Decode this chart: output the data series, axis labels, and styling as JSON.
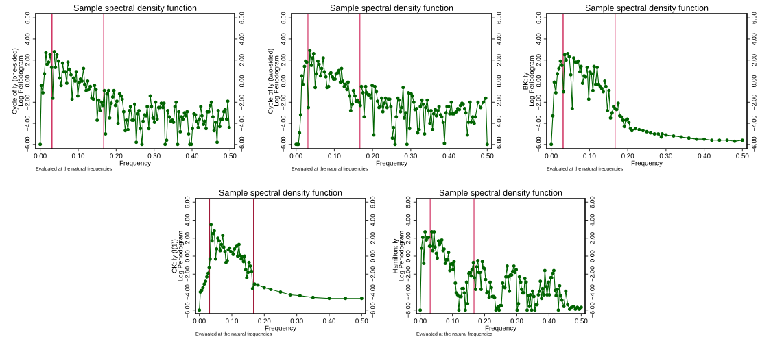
{
  "chart_data": [
    {
      "type": "line",
      "title": "Sample spectral density function",
      "xlabel": "Frequency",
      "ylabel": "Cycle of ly (one-sided)\nLog Periodogram",
      "marker": "circle",
      "line_style": "solid",
      "grid": false,
      "xlim": [
        -0.012,
        0.512
      ],
      "xticks": [
        {
          "value": 0,
          "label": "0.00"
        },
        {
          "value": 0.1,
          "label": "0.10"
        },
        {
          "value": 0.2,
          "label": "0.20"
        },
        {
          "value": 0.3,
          "label": "0.30"
        },
        {
          "value": 0.4,
          "label": "0.40"
        },
        {
          "value": 0.5,
          "label": "0.50"
        }
      ],
      "ylim": [
        -6.4,
        6.4
      ],
      "yticks": [
        {
          "value": -6,
          "label": "−6.00"
        },
        {
          "value": -4,
          "label": "−4.00"
        },
        {
          "value": -2,
          "label": "−2.00"
        },
        {
          "value": 0,
          "label": "0.00"
        },
        {
          "value": 2,
          "label": "2.00"
        },
        {
          "value": 4,
          "label": "4.00"
        },
        {
          "value": 6,
          "label": "6.00"
        }
      ],
      "y2lim": [
        -6.4,
        6.4
      ],
      "y2ticks": [
        {
          "value": -6,
          "label": "−6.00"
        },
        {
          "value": -4,
          "label": "−4.00"
        },
        {
          "value": -2,
          "label": "−2.00"
        },
        {
          "value": 0,
          "label": "0.00"
        },
        {
          "value": 2,
          "label": "2.00"
        },
        {
          "value": 4,
          "label": "4.00"
        },
        {
          "value": 6,
          "label": "6.00"
        }
      ],
      "ref_lines": [
        {
          "axis": "x",
          "value": 0.031,
          "color": "#cc2255"
        },
        {
          "axis": "x",
          "value": 0.167,
          "color": "#e0608a"
        }
      ],
      "annotations": [
        "Evaluated at the natural frequencies"
      ],
      "series": [
        {
          "color": "#006400",
          "x": [
            0.0,
            0.003,
            0.007,
            0.011,
            0.015,
            0.018,
            0.022,
            0.026,
            0.03,
            0.033,
            0.037,
            0.04,
            0.044,
            0.048,
            0.051,
            0.055,
            0.059,
            0.062,
            0.066,
            0.07,
            0.073,
            0.077,
            0.081,
            0.084,
            0.088,
            0.092,
            0.095,
            0.099,
            0.103,
            0.106,
            0.11,
            0.114,
            0.117,
            0.121,
            0.125,
            0.128,
            0.132,
            0.136,
            0.14,
            0.143,
            0.147,
            0.15,
            0.154,
            0.158,
            0.161,
            0.165,
            0.169,
            0.172,
            0.176,
            0.18,
            0.183,
            0.187,
            0.191,
            0.194,
            0.198,
            0.202,
            0.205,
            0.209,
            0.213,
            0.216,
            0.22,
            0.224,
            0.227,
            0.231,
            0.235,
            0.238,
            0.242,
            0.246,
            0.249,
            0.253,
            0.257,
            0.26,
            0.264,
            0.268,
            0.271,
            0.275,
            0.279,
            0.282,
            0.286,
            0.29,
            0.293,
            0.297,
            0.301,
            0.304,
            0.308,
            0.312,
            0.315,
            0.319,
            0.323,
            0.326,
            0.329,
            0.333,
            0.336,
            0.34,
            0.344,
            0.348,
            0.351,
            0.355,
            0.358,
            0.362,
            0.365,
            0.369,
            0.372,
            0.376,
            0.38,
            0.383,
            0.387,
            0.391,
            0.394,
            0.398,
            0.401,
            0.405,
            0.409,
            0.412,
            0.416,
            0.419,
            0.423,
            0.426,
            0.43,
            0.433,
            0.437,
            0.44,
            0.444,
            0.448,
            0.451,
            0.455,
            0.458,
            0.462,
            0.466,
            0.469,
            0.473,
            0.476,
            0.48,
            0.484,
            0.487,
            0.491,
            0.494,
            0.498
          ],
          "values": [
            -6.0,
            -0.4,
            -1.1,
            0.7,
            2.7,
            1.6,
            1.8,
            2.5,
            1.3,
            -1.6,
            2.8,
            1.3,
            2.5,
            1.9,
            0.3,
            -0.4,
            1.7,
            0.9,
            0.9,
            -0.2,
            1.8,
            1.1,
            0.6,
            -1.7,
            0.3,
            0.0,
            0.9,
            -1.4,
            -0.1,
            0.2,
            0.0,
            1.2,
            -0.3,
            -0.9,
            0.0,
            -0.8,
            -0.5,
            -1.6,
            -1.7,
            -0.4,
            -0.8,
            -3.7,
            -1.8,
            -2.8,
            -2.0,
            -2.3,
            -0.9,
            -5.0,
            -1.2,
            -0.9,
            -3.5,
            -2.1,
            -1.5,
            -0.9,
            -2.3,
            -1.9,
            -4.0,
            -1.2,
            -1.4,
            -1.7,
            -2.9,
            -4.7,
            -3.7,
            -4.6,
            -2.8,
            -2.4,
            -3.7,
            -3.7,
            -2.2,
            -5.8,
            -3.1,
            -2.8,
            -4.5,
            -6.0,
            -3.8,
            -3.2,
            -3.3,
            -2.4,
            -4.5,
            -1.4,
            -2.4,
            -3.5,
            -3.9,
            -2.0,
            -3.6,
            -2.5,
            -2.5,
            -2.1,
            -2.5,
            -2.1,
            -6.0,
            -5.6,
            -2.8,
            -3.4,
            -3.8,
            -3.7,
            -3.9,
            -2.4,
            -2.0,
            -6.0,
            -2.9,
            -4.8,
            -3.4,
            -3.6,
            -3.0,
            -3.3,
            -2.9,
            -5.0,
            -6.0,
            -6.0,
            -4.5,
            -3.1,
            -3.2,
            -3.8,
            -4.4,
            -3.6,
            -2.4,
            -3.3,
            -4.1,
            -3.8,
            -4.5,
            -2.9,
            -2.9,
            -2.3,
            -2.0,
            -3.4,
            -4.7,
            -3.9,
            -5.8,
            -2.8,
            -4.3,
            -3.6,
            -3.6,
            -2.9,
            -2.7,
            -3.6,
            -1.9,
            -4.4
          ]
        }
      ]
    },
    {
      "type": "line",
      "title": "Sample spectral density function",
      "xlabel": "Frequency",
      "ylabel": "Cycle of ly (two-sided)\nLog Periodogram",
      "marker": "circle",
      "line_style": "solid",
      "grid": false,
      "xlim": [
        -0.012,
        0.512
      ],
      "xticks": [
        {
          "value": 0,
          "label": "0.00"
        },
        {
          "value": 0.1,
          "label": "0.10"
        },
        {
          "value": 0.2,
          "label": "0.20"
        },
        {
          "value": 0.3,
          "label": "0.30"
        },
        {
          "value": 0.4,
          "label": "0.40"
        },
        {
          "value": 0.5,
          "label": "0.50"
        }
      ],
      "ylim": [
        -6.4,
        6.4
      ],
      "yticks": [
        {
          "value": -6,
          "label": "−6.00"
        },
        {
          "value": -4,
          "label": "−4.00"
        },
        {
          "value": -2,
          "label": "−2.00"
        },
        {
          "value": 0,
          "label": "0.00"
        },
        {
          "value": 2,
          "label": "2.00"
        },
        {
          "value": 4,
          "label": "4.00"
        },
        {
          "value": 6,
          "label": "6.00"
        }
      ],
      "y2lim": [
        -6.4,
        6.4
      ],
      "y2ticks": [
        {
          "value": -6,
          "label": "−6.00"
        },
        {
          "value": -4,
          "label": "−4.00"
        },
        {
          "value": -2,
          "label": "−2.00"
        },
        {
          "value": 0,
          "label": "0.00"
        },
        {
          "value": 2,
          "label": "2.00"
        },
        {
          "value": 4,
          "label": "4.00"
        },
        {
          "value": 6,
          "label": "6.00"
        }
      ],
      "ref_lines": [
        {
          "axis": "x",
          "value": 0.031,
          "color": "#d8507a"
        },
        {
          "axis": "x",
          "value": 0.167,
          "color": "#d8507a"
        }
      ],
      "annotations": [
        "Evaluated at the natural frequencies"
      ],
      "series": [
        {
          "color": "#006400",
          "x": [
            0.0,
            0.003,
            0.006,
            0.009,
            0.012,
            0.015,
            0.018,
            0.022,
            0.025,
            0.028,
            0.032,
            0.036,
            0.04,
            0.043,
            0.046,
            0.05,
            0.053,
            0.057,
            0.06,
            0.064,
            0.067,
            0.071,
            0.074,
            0.078,
            0.081,
            0.085,
            0.088,
            0.091,
            0.095,
            0.098,
            0.102,
            0.105,
            0.109,
            0.112,
            0.116,
            0.119,
            0.122,
            0.126,
            0.129,
            0.133,
            0.136,
            0.14,
            0.143,
            0.147,
            0.15,
            0.154,
            0.157,
            0.161,
            0.164,
            0.168,
            0.171,
            0.175,
            0.178,
            0.182,
            0.185,
            0.189,
            0.192,
            0.196,
            0.199,
            0.203,
            0.206,
            0.21,
            0.213,
            0.217,
            0.22,
            0.224,
            0.227,
            0.231,
            0.234,
            0.238,
            0.241,
            0.245,
            0.248,
            0.252,
            0.255,
            0.259,
            0.262,
            0.266,
            0.269,
            0.273,
            0.276,
            0.28,
            0.283,
            0.287,
            0.29,
            0.294,
            0.297,
            0.301,
            0.304,
            0.308,
            0.311,
            0.315,
            0.318,
            0.322,
            0.325,
            0.329,
            0.332,
            0.336,
            0.339,
            0.343,
            0.346,
            0.35,
            0.353,
            0.357,
            0.36,
            0.364,
            0.367,
            0.371,
            0.374,
            0.378,
            0.381,
            0.385,
            0.388,
            0.392,
            0.395,
            0.399,
            0.402,
            0.406,
            0.409,
            0.413,
            0.416,
            0.42,
            0.423,
            0.427,
            0.43,
            0.434,
            0.437,
            0.441,
            0.444,
            0.448,
            0.451,
            0.455,
            0.458,
            0.462,
            0.466,
            0.469,
            0.476,
            0.483,
            0.49,
            0.496,
            0.5
          ],
          "values": [
            -6.0,
            -6.0,
            -6.0,
            -4.9,
            -3.2,
            0.5,
            -0.3,
            1.4,
            1.9,
            1.8,
            -2.5,
            2.9,
            1.5,
            2.2,
            2.6,
            -0.6,
            0.7,
            1.9,
            1.6,
            0.5,
            1.2,
            2.2,
            0.9,
            0.4,
            -0.6,
            -0.5,
            0.7,
            0.8,
            0.4,
            0.2,
            0.2,
            0.7,
            0.8,
            1.0,
            -0.1,
            1.2,
            0.0,
            -0.5,
            -0.3,
            -0.8,
            -0.1,
            -1.4,
            -2.8,
            -2.2,
            -0.9,
            -1.4,
            -1.9,
            -1.8,
            -2.0,
            -2.3,
            -0.5,
            -1.1,
            -3.4,
            -0.5,
            -1.1,
            -1.3,
            -1.3,
            -1.6,
            -0.4,
            -5.1,
            -0.5,
            -1.0,
            -1.9,
            -2.5,
            -2.4,
            -1.6,
            -2.9,
            -2.1,
            -1.6,
            -2.5,
            -1.7,
            -1.7,
            -2.4,
            -5.4,
            -4.4,
            -6.0,
            -3.4,
            -1.6,
            -1.8,
            -2.9,
            -2.5,
            -0.6,
            -3.5,
            -3.0,
            -6.0,
            -1.1,
            -4.5,
            -1.2,
            -1.4,
            -2.0,
            -2.7,
            -2.6,
            -4.9,
            -4.6,
            -2.4,
            -1.8,
            -2.2,
            -5.0,
            -2.5,
            -1.8,
            -2.8,
            -4.0,
            -2.8,
            -4.6,
            -3.1,
            -2.7,
            -3.3,
            -2.8,
            -2.4,
            -3.2,
            -3.4,
            -3.9,
            -5.9,
            -3.0,
            -2.4,
            -2.4,
            -3.1,
            -2.0,
            -3.1,
            -3.1,
            -3.0,
            -2.9,
            -2.6,
            -2.7,
            -2.3,
            -2.1,
            -2.2,
            -2.6,
            -3.0,
            -5.1,
            -3.9,
            -2.0,
            -3.9,
            -3.4,
            -4.0,
            -3.4,
            -2.0,
            -2.5,
            -2.0,
            -1.6,
            -6.0
          ]
        }
      ]
    },
    {
      "type": "line",
      "title": "Sample spectral density function",
      "xlabel": "Frequency",
      "ylabel": "BK: ly\nLog Periodogram",
      "marker": "circle",
      "line_style": "solid",
      "grid": false,
      "xlim": [
        -0.012,
        0.512
      ],
      "xticks": [
        {
          "value": 0,
          "label": "0.00"
        },
        {
          "value": 0.1,
          "label": "0.10"
        },
        {
          "value": 0.2,
          "label": "0.20"
        },
        {
          "value": 0.3,
          "label": "0.30"
        },
        {
          "value": 0.4,
          "label": "0.40"
        },
        {
          "value": 0.5,
          "label": "0.50"
        }
      ],
      "ylim": [
        -6.4,
        6.4
      ],
      "yticks": [
        {
          "value": -6,
          "label": "−6.00"
        },
        {
          "value": -4,
          "label": "−4.00"
        },
        {
          "value": -2,
          "label": "−2.00"
        },
        {
          "value": 0,
          "label": "0.00"
        },
        {
          "value": 2,
          "label": "2.00"
        },
        {
          "value": 4,
          "label": "4.00"
        },
        {
          "value": 6,
          "label": "6.00"
        }
      ],
      "y2lim": [
        -6.4,
        6.4
      ],
      "y2ticks": [
        {
          "value": -6,
          "label": "−6.00"
        },
        {
          "value": -4,
          "label": "−4.00"
        },
        {
          "value": -2,
          "label": "−2.00"
        },
        {
          "value": 0,
          "label": "0.00"
        },
        {
          "value": 2,
          "label": "2.00"
        },
        {
          "value": 4,
          "label": "4.00"
        },
        {
          "value": 6,
          "label": "6.00"
        }
      ],
      "ref_lines": [
        {
          "axis": "x",
          "value": 0.031,
          "color": "#cc2255"
        },
        {
          "axis": "x",
          "value": 0.167,
          "color": "#e0608a"
        }
      ],
      "annotations": [
        "Evaluated at the natural frequencies"
      ],
      "series": [
        {
          "color": "#006400",
          "x": [
            0.0,
            0.004,
            0.008,
            0.012,
            0.016,
            0.02,
            0.024,
            0.028,
            0.032,
            0.035,
            0.039,
            0.043,
            0.047,
            0.051,
            0.055,
            0.059,
            0.063,
            0.067,
            0.071,
            0.075,
            0.078,
            0.082,
            0.086,
            0.09,
            0.094,
            0.098,
            0.101,
            0.105,
            0.109,
            0.112,
            0.116,
            0.12,
            0.124,
            0.128,
            0.132,
            0.136,
            0.14,
            0.143,
            0.147,
            0.151,
            0.155,
            0.159,
            0.163,
            0.167,
            0.171,
            0.175,
            0.179,
            0.183,
            0.187,
            0.191,
            0.195,
            0.199,
            0.203,
            0.207,
            0.211,
            0.22,
            0.23,
            0.24,
            0.25,
            0.26,
            0.27,
            0.28,
            0.288,
            0.29,
            0.3,
            0.32,
            0.34,
            0.36,
            0.38,
            0.4,
            0.42,
            0.44,
            0.46,
            0.48,
            0.5
          ],
          "values": [
            -6.0,
            -3.3,
            -0.1,
            -1.1,
            0.7,
            1.2,
            1.9,
            1.5,
            -1.0,
            2.5,
            2.0,
            2.6,
            2.3,
            0.6,
            -2.6,
            2.2,
            1.8,
            1.8,
            1.9,
            0.9,
            1.4,
            -0.2,
            0.5,
            0.4,
            1.3,
            -1.7,
            0.9,
            0.7,
            -0.9,
            1.4,
            -0.3,
            1.3,
            -0.3,
            -0.5,
            -0.7,
            -1.0,
            0.0,
            -0.5,
            -2.8,
            -0.9,
            -3.5,
            -3.0,
            -2.4,
            -2.6,
            -2.7,
            -2.1,
            -3.3,
            -3.4,
            -3.7,
            -4.3,
            -3.7,
            -3.6,
            -3.9,
            -4.5,
            -4.7,
            -4.5,
            -4.6,
            -4.7,
            -4.8,
            -4.9,
            -5.0,
            -5.0,
            -5.3,
            -5.0,
            -5.1,
            -5.2,
            -5.3,
            -5.4,
            -5.5,
            -5.5,
            -5.6,
            -5.6,
            -5.6,
            -5.7,
            -5.6
          ]
        }
      ]
    },
    {
      "type": "line",
      "title": "Sample spectral density function",
      "xlabel": "Frequency",
      "ylabel": "CK: ly (I(1))\nLog Periodogram",
      "marker": "circle",
      "line_style": "solid",
      "grid": false,
      "xlim": [
        -0.012,
        0.512
      ],
      "xticks": [
        {
          "value": 0,
          "label": "0.00"
        },
        {
          "value": 0.1,
          "label": "0.10"
        },
        {
          "value": 0.2,
          "label": "0.20"
        },
        {
          "value": 0.3,
          "label": "0.30"
        },
        {
          "value": 0.4,
          "label": "0.40"
        },
        {
          "value": 0.5,
          "label": "0.50"
        }
      ],
      "ylim": [
        -6.4,
        6.4
      ],
      "yticks": [
        {
          "value": -6,
          "label": "−6.00"
        },
        {
          "value": -4,
          "label": "−4.00"
        },
        {
          "value": -2,
          "label": "−2.00"
        },
        {
          "value": 0,
          "label": "0.00"
        },
        {
          "value": 2,
          "label": "2.00"
        },
        {
          "value": 4,
          "label": "4.00"
        },
        {
          "value": 6,
          "label": "6.00"
        }
      ],
      "y2lim": [
        -6.4,
        6.4
      ],
      "y2ticks": [
        {
          "value": -6,
          "label": "−6.00"
        },
        {
          "value": -4,
          "label": "−4.00"
        },
        {
          "value": -2,
          "label": "−2.00"
        },
        {
          "value": 0,
          "label": "0.00"
        },
        {
          "value": 2,
          "label": "2.00"
        },
        {
          "value": 4,
          "label": "4.00"
        },
        {
          "value": 6,
          "label": "6.00"
        }
      ],
      "ref_lines": [
        {
          "axis": "x",
          "value": 0.031,
          "color": "#a01838"
        },
        {
          "axis": "x",
          "value": 0.167,
          "color": "#a01838"
        }
      ],
      "annotations": [
        "Evaluated at the natural frequencies"
      ],
      "series": [
        {
          "color": "#006400",
          "x": [
            0.0,
            0.003,
            0.007,
            0.011,
            0.015,
            0.019,
            0.023,
            0.027,
            0.03,
            0.033,
            0.036,
            0.039,
            0.042,
            0.046,
            0.05,
            0.053,
            0.057,
            0.061,
            0.064,
            0.068,
            0.072,
            0.075,
            0.079,
            0.082,
            0.086,
            0.089,
            0.093,
            0.097,
            0.104,
            0.108,
            0.115,
            0.118,
            0.122,
            0.125,
            0.129,
            0.132,
            0.136,
            0.139,
            0.143,
            0.146,
            0.15,
            0.153,
            0.157,
            0.161,
            0.164,
            0.17,
            0.18,
            0.2,
            0.22,
            0.25,
            0.28,
            0.31,
            0.35,
            0.4,
            0.45,
            0.5
          ],
          "values": [
            -6.0,
            -4.0,
            -3.8,
            -3.5,
            -3.1,
            -2.8,
            -2.3,
            -1.9,
            -1.3,
            -0.3,
            3.5,
            1.7,
            2.5,
            2.8,
            -0.3,
            0.8,
            2.0,
            1.7,
            0.6,
            1.3,
            2.3,
            1.0,
            0.5,
            -0.7,
            -0.5,
            0.7,
            0.9,
            0.5,
            0.2,
            0.8,
            1.1,
            0.0,
            1.3,
            0.1,
            -0.3,
            -0.1,
            -0.6,
            0.0,
            -1.5,
            -2.4,
            -1.8,
            -0.7,
            -1.1,
            -1.7,
            -3.6,
            -3.1,
            -3.2,
            -3.5,
            -3.7,
            -4.0,
            -4.3,
            -4.4,
            -4.6,
            -4.7,
            -4.7,
            -4.7
          ]
        }
      ]
    },
    {
      "type": "line",
      "title": "Sample spectral density function",
      "xlabel": "Frequency",
      "ylabel": "Hamilton: ly\nLog Periodogram",
      "marker": "circle",
      "line_style": "solid",
      "grid": false,
      "xlim": [
        -0.012,
        0.512
      ],
      "xticks": [
        {
          "value": 0,
          "label": "0.00"
        },
        {
          "value": 0.1,
          "label": "0.10"
        },
        {
          "value": 0.2,
          "label": "0.20"
        },
        {
          "value": 0.3,
          "label": "0.30"
        },
        {
          "value": 0.4,
          "label": "0.40"
        },
        {
          "value": 0.5,
          "label": "0.50"
        }
      ],
      "ylim": [
        -6.4,
        6.4
      ],
      "yticks": [
        {
          "value": -6,
          "label": "−6.00"
        },
        {
          "value": -4,
          "label": "−4.00"
        },
        {
          "value": -2,
          "label": "−2.00"
        },
        {
          "value": 0,
          "label": "0.00"
        },
        {
          "value": 2,
          "label": "2.00"
        },
        {
          "value": 4,
          "label": "4.00"
        },
        {
          "value": 6,
          "label": "6.00"
        }
      ],
      "y2lim": [
        -6.4,
        6.4
      ],
      "y2ticks": [
        {
          "value": -6,
          "label": "−6.00"
        },
        {
          "value": -4,
          "label": "−4.00"
        },
        {
          "value": -2,
          "label": "−2.00"
        },
        {
          "value": 0,
          "label": "0.00"
        },
        {
          "value": 2,
          "label": "2.00"
        },
        {
          "value": 4,
          "label": "4.00"
        },
        {
          "value": 6,
          "label": "6.00"
        }
      ],
      "ref_lines": [
        {
          "axis": "x",
          "value": 0.031,
          "color": "#d8507a"
        },
        {
          "axis": "x",
          "value": 0.167,
          "color": "#d8507a"
        }
      ],
      "annotations": [
        "Evaluated at the natural frequencies"
      ],
      "series": [
        {
          "color": "#006400",
          "x": [
            0.0,
            0.004,
            0.008,
            0.011,
            0.015,
            0.019,
            0.022,
            0.026,
            0.029,
            0.032,
            0.036,
            0.039,
            0.043,
            0.046,
            0.05,
            0.053,
            0.057,
            0.06,
            0.064,
            0.067,
            0.071,
            0.074,
            0.078,
            0.081,
            0.085,
            0.088,
            0.092,
            0.095,
            0.099,
            0.102,
            0.105,
            0.109,
            0.112,
            0.116,
            0.12,
            0.123,
            0.127,
            0.13,
            0.134,
            0.137,
            0.14,
            0.144,
            0.147,
            0.151,
            0.154,
            0.158,
            0.161,
            0.165,
            0.168,
            0.172,
            0.175,
            0.179,
            0.182,
            0.186,
            0.189,
            0.193,
            0.196,
            0.2,
            0.203,
            0.207,
            0.21,
            0.214,
            0.217,
            0.221,
            0.224,
            0.228,
            0.231,
            0.235,
            0.238,
            0.242,
            0.245,
            0.249,
            0.252,
            0.256,
            0.259,
            0.263,
            0.266,
            0.27,
            0.273,
            0.277,
            0.28,
            0.284,
            0.287,
            0.291,
            0.294,
            0.298,
            0.301,
            0.305,
            0.308,
            0.312,
            0.315,
            0.318,
            0.322,
            0.325,
            0.329,
            0.332,
            0.336,
            0.339,
            0.342,
            0.346,
            0.349,
            0.353,
            0.356,
            0.36,
            0.363,
            0.367,
            0.37,
            0.373,
            0.377,
            0.38,
            0.384,
            0.387,
            0.391,
            0.394,
            0.398,
            0.401,
            0.405,
            0.408,
            0.412,
            0.415,
            0.419,
            0.422,
            0.426,
            0.429,
            0.433,
            0.436,
            0.44,
            0.446,
            0.452,
            0.458,
            0.464,
            0.47,
            0.476,
            0.482,
            0.488,
            0.494,
            0.5
          ],
          "values": [
            -6.0,
            0.9,
            2.1,
            -0.8,
            2.7,
            1.8,
            2.1,
            2.1,
            1.1,
            1.1,
            2.7,
            0.6,
            2.7,
            1.0,
            0.3,
            -0.2,
            1.7,
            1.3,
            1.5,
            1.8,
            0.6,
            0.8,
            -0.8,
            -0.4,
            -0.4,
            0.4,
            -1.6,
            -0.9,
            -0.8,
            -1.5,
            -0.6,
            -3.0,
            -4.1,
            -4.3,
            -6.0,
            -4.5,
            -4.5,
            -3.6,
            -3.6,
            -4.1,
            -6.0,
            -2.9,
            -5.3,
            -1.9,
            -1.8,
            -2.2,
            -1.5,
            -0.7,
            -2.4,
            -3.7,
            -1.2,
            -0.5,
            -1.8,
            -1.8,
            -3.7,
            -0.6,
            -1.3,
            -1.4,
            -2.6,
            -4.1,
            -4.0,
            -4.6,
            -2.9,
            -3.5,
            -4.5,
            -4.5,
            -4.6,
            -6.0,
            -5.8,
            -5.6,
            -6.0,
            -5.5,
            -5.5,
            -3.0,
            -3.4,
            -3.5,
            -2.3,
            -1.1,
            -2.3,
            -3.9,
            -2.1,
            -2.1,
            -1.7,
            -1.1,
            -1.8,
            -1.5,
            -6.0,
            -5.3,
            -2.3,
            -2.9,
            -3.7,
            -4.1,
            -4.1,
            -2.5,
            -2.9,
            -6.0,
            -4.4,
            -5.6,
            -4.3,
            -6.0,
            -3.9,
            -4.5,
            -6.0,
            -5.4,
            -5.4,
            -4.3,
            -3.9,
            -2.8,
            -4.7,
            -3.6,
            -4.3,
            -1.6,
            -3.4,
            -4.3,
            -2.9,
            -4.3,
            -2.4,
            -2.4,
            -1.9,
            -1.6,
            -3.8,
            -4.4,
            -3.7,
            -6.0,
            -3.3,
            -4.4,
            -4.9,
            -5.6,
            -3.9,
            -5.4,
            -5.9,
            -5.7,
            -5.6,
            -5.9,
            -5.7,
            -5.9,
            -5.7
          ]
        }
      ]
    }
  ]
}
